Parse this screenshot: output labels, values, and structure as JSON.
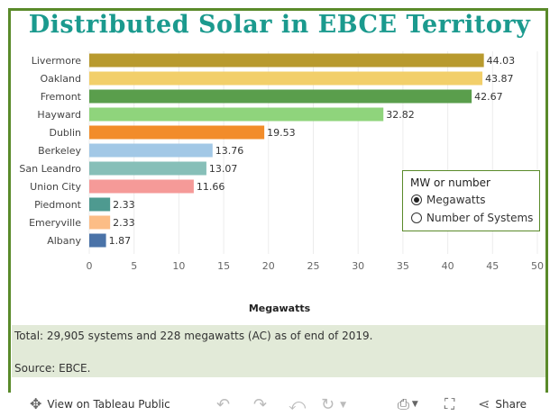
{
  "title": "Distributed Solar in EBCE Territory",
  "chart_data": {
    "type": "bar",
    "orientation": "horizontal",
    "title": "Distributed Solar in EBCE Territory",
    "xlabel": "Megawatts",
    "ylabel": "",
    "xlim": [
      0,
      50
    ],
    "xticks": [
      0,
      5,
      10,
      15,
      20,
      25,
      30,
      35,
      40,
      45,
      50
    ],
    "categories": [
      "Livermore",
      "Oakland",
      "Fremont",
      "Hayward",
      "Dublin",
      "Berkeley",
      "San Leandro",
      "Union City",
      "Piedmont",
      "Emeryville",
      "Albany"
    ],
    "values": [
      44.03,
      43.87,
      42.67,
      32.82,
      19.53,
      13.76,
      13.07,
      11.66,
      2.33,
      2.33,
      1.87
    ],
    "labels": [
      "44.03",
      "43.87",
      "42.67",
      "32.82",
      "19.53",
      "13.76",
      "13.07",
      "11.66",
      "2.33",
      "2.33",
      "1.87"
    ],
    "colors": [
      "#b89a2e",
      "#f2cf6a",
      "#5a9e4c",
      "#8fd47c",
      "#f28c2a",
      "#a2c8e6",
      "#87bfb8",
      "#f59a98",
      "#4e9a90",
      "#fcbd86",
      "#4a73a8"
    ]
  },
  "legend": {
    "title": "MW or number",
    "options": [
      "Megawatts",
      "Number of Systems"
    ],
    "selected": "Megawatts"
  },
  "notes": {
    "total": "Total:  29,905 systems and 228 megawatts (AC) as of end of 2019.",
    "source": "Source:  EBCE."
  },
  "toolbar": {
    "view_label": "View on Tableau Public",
    "share_label": "Share"
  }
}
